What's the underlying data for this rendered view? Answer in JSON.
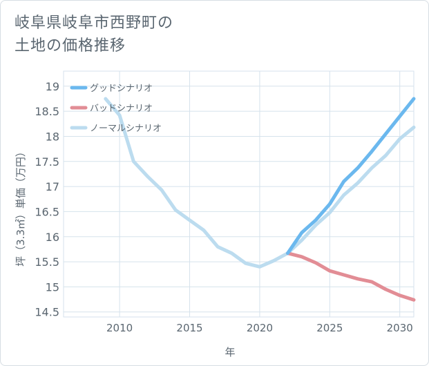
{
  "page": {
    "title_line1": "岐阜県岐阜市西野町の",
    "title_line2": "土地の価格推移"
  },
  "chart_data": {
    "type": "line",
    "title": "岐阜県岐阜市西野町の土地の価格推移",
    "xlabel": "年",
    "ylabel": "坪（3.3㎡）単価（万円）",
    "xlim": [
      2006,
      2031
    ],
    "ylim": [
      14.4,
      19.3
    ],
    "x_ticks": [
      2010,
      2015,
      2020,
      2025,
      2030
    ],
    "y_ticks": [
      14.5,
      15,
      15.5,
      16,
      16.5,
      17,
      17.5,
      18,
      18.5,
      19
    ],
    "grid": true,
    "legend_position": "top-left",
    "series": [
      {
        "name": "グッドシナリオ",
        "color": "#6bb8ee",
        "points": [
          [
            2022,
            15.67
          ],
          [
            2023,
            16.08
          ],
          [
            2024,
            16.33
          ],
          [
            2025,
            16.65
          ],
          [
            2026,
            17.1
          ],
          [
            2027,
            17.37
          ],
          [
            2028,
            17.7
          ],
          [
            2029,
            18.05
          ],
          [
            2030,
            18.4
          ],
          [
            2031,
            18.75
          ]
        ]
      },
      {
        "name": "バッドシナリオ",
        "color": "#e28d95",
        "points": [
          [
            2022,
            15.67
          ],
          [
            2023,
            15.6
          ],
          [
            2024,
            15.48
          ],
          [
            2025,
            15.32
          ],
          [
            2026,
            15.24
          ],
          [
            2027,
            15.16
          ],
          [
            2028,
            15.1
          ],
          [
            2029,
            14.95
          ],
          [
            2030,
            14.83
          ],
          [
            2031,
            14.74
          ]
        ]
      },
      {
        "name": "ノーマルシナリオ",
        "color": "#bcdcef",
        "points": [
          [
            2009,
            18.75
          ],
          [
            2010,
            18.42
          ],
          [
            2011,
            17.5
          ],
          [
            2012,
            17.2
          ],
          [
            2013,
            16.93
          ],
          [
            2014,
            16.53
          ],
          [
            2015,
            16.33
          ],
          [
            2016,
            16.13
          ],
          [
            2017,
            15.8
          ],
          [
            2018,
            15.67
          ],
          [
            2019,
            15.47
          ],
          [
            2020,
            15.4
          ],
          [
            2021,
            15.52
          ],
          [
            2022,
            15.67
          ],
          [
            2023,
            15.93
          ],
          [
            2024,
            16.23
          ],
          [
            2025,
            16.48
          ],
          [
            2026,
            16.83
          ],
          [
            2027,
            17.07
          ],
          [
            2028,
            17.37
          ],
          [
            2029,
            17.62
          ],
          [
            2030,
            17.95
          ],
          [
            2031,
            18.18
          ]
        ]
      }
    ]
  }
}
